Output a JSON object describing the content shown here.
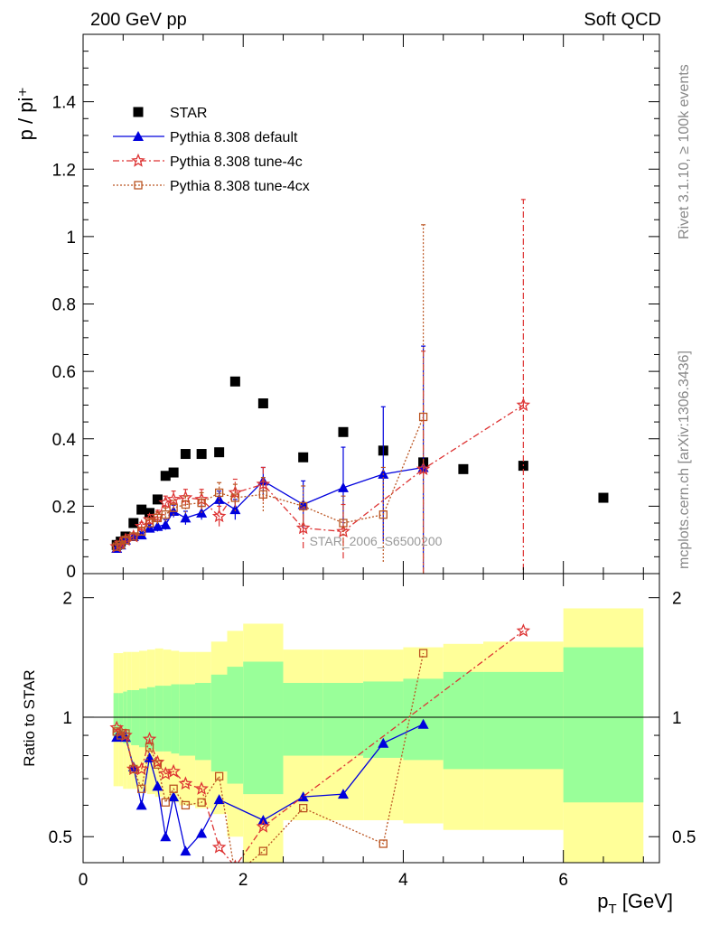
{
  "header": {
    "left": "200 GeV pp",
    "right": "Soft QCD"
  },
  "side_labels": {
    "rivet": "Rivet 3.1.10, ≥ 100k events",
    "source": "mcplots.cern.ch [arXiv:1306.3436]"
  },
  "watermark": "STAR_2006_S6500200",
  "colors": {
    "star": "#000000",
    "default": "#0000dd",
    "tune4c": "#dd3333",
    "tune4cx": "#bb5522",
    "band_outer": "#ffff99",
    "band_inner": "#99ff99"
  },
  "chart_data": [
    {
      "type": "scatter",
      "panel": "main",
      "ylabel": "p / pi⁺",
      "ylim": [
        0,
        1.6
      ],
      "xlim": [
        0,
        7.2
      ],
      "yticks": [
        "0.2",
        "0.4",
        "0.6",
        "0.8",
        "1",
        "1.2",
        "1.4"
      ],
      "zero_label": "0",
      "legend_position": "top-left",
      "series": [
        {
          "name": "STAR",
          "marker": "square",
          "x": [
            0.42,
            0.47,
            0.53,
            0.63,
            0.73,
            0.83,
            0.93,
            1.03,
            1.13,
            1.28,
            1.48,
            1.7,
            1.9,
            2.25,
            2.75,
            3.25,
            3.75,
            4.25,
            4.75,
            5.5,
            6.5
          ],
          "y": [
            0.085,
            0.095,
            0.11,
            0.15,
            0.19,
            0.18,
            0.22,
            0.29,
            0.3,
            0.355,
            0.355,
            0.36,
            0.57,
            0.505,
            0.345,
            0.42,
            0.365,
            0.33,
            0.31,
            0.32,
            0.225
          ]
        },
        {
          "name": "Pythia 8.308 default",
          "marker": "triangle",
          "line": "solid",
          "x": [
            0.42,
            0.47,
            0.53,
            0.63,
            0.73,
            0.83,
            0.93,
            1.03,
            1.13,
            1.28,
            1.48,
            1.7,
            1.9,
            2.25,
            2.75,
            3.25,
            3.75,
            4.25
          ],
          "y": [
            0.075,
            0.085,
            0.1,
            0.11,
            0.115,
            0.135,
            0.14,
            0.145,
            0.185,
            0.165,
            0.18,
            0.22,
            0.19,
            0.275,
            0.205,
            0.255,
            0.295,
            0.315
          ],
          "err": [
            0.005,
            0.005,
            0.006,
            0.008,
            0.01,
            0.012,
            0.015,
            0.015,
            0.018,
            0.02,
            0.02,
            0.025,
            0.03,
            0.04,
            0.07,
            0.12,
            0.2,
            0.36
          ]
        },
        {
          "name": "Pythia 8.308 tune-4c",
          "marker": "star",
          "line": "dashdot",
          "x": [
            0.42,
            0.47,
            0.53,
            0.63,
            0.73,
            0.83,
            0.93,
            1.03,
            1.13,
            1.28,
            1.48,
            1.7,
            1.9,
            2.25,
            2.75,
            3.25,
            3.75,
            4.25,
            5.5
          ],
          "y": [
            0.08,
            0.09,
            0.1,
            0.11,
            0.14,
            0.16,
            0.17,
            0.21,
            0.22,
            0.225,
            0.22,
            0.17,
            0.24,
            0.265,
            0.135,
            0.125,
            null,
            0.31,
            0.5
          ],
          "err": [
            0.005,
            0.006,
            0.007,
            0.01,
            0.012,
            0.015,
            0.018,
            0.02,
            0.025,
            0.025,
            0.03,
            0.03,
            0.04,
            0.05,
            0.06,
            0.08,
            null,
            0.35,
            0.61
          ]
        },
        {
          "name": "Pythia 8.308 tune-4cx",
          "marker": "open-square",
          "line": "dotted",
          "x": [
            0.42,
            0.47,
            0.53,
            0.63,
            0.73,
            0.83,
            0.93,
            1.03,
            1.13,
            1.28,
            1.48,
            1.7,
            1.9,
            2.25,
            2.75,
            3.25,
            3.75,
            4.25
          ],
          "y": [
            0.08,
            0.085,
            0.1,
            0.11,
            0.125,
            0.15,
            0.165,
            0.175,
            0.195,
            0.205,
            0.21,
            0.24,
            0.225,
            0.235,
            0.2,
            0.15,
            0.175,
            0.465
          ],
          "err": [
            0.005,
            0.006,
            0.007,
            0.01,
            0.012,
            0.015,
            0.018,
            0.02,
            0.022,
            0.025,
            0.03,
            0.03,
            0.04,
            0.05,
            0.06,
            0.08,
            0.14,
            0.57
          ]
        }
      ]
    },
    {
      "type": "line",
      "panel": "ratio",
      "ylabel": "Ratio to STAR",
      "xlabel": "p_T [GeV]",
      "xlim": [
        0,
        7.2
      ],
      "xticks": [
        "0",
        "2",
        "4",
        "6"
      ],
      "yticks": [
        "0.5",
        "1",
        "2"
      ],
      "reference": 1,
      "bands": {
        "edges": [
          0.38,
          0.45,
          0.5,
          0.55,
          0.6,
          0.7,
          0.8,
          0.9,
          1.0,
          1.1,
          1.2,
          1.4,
          1.6,
          1.8,
          2.0,
          2.5,
          3.0,
          3.5,
          4.0,
          4.5,
          5.0,
          6.0,
          7.0
        ],
        "outer_lo": [
          0.67,
          0.67,
          0.66,
          0.66,
          0.66,
          0.65,
          0.64,
          0.63,
          0.62,
          0.61,
          0.6,
          0.59,
          0.57,
          0.5,
          0.42,
          0.55,
          0.55,
          0.55,
          0.54,
          0.52,
          0.52,
          0.4
        ],
        "outer_hi": [
          1.45,
          1.45,
          1.46,
          1.46,
          1.46,
          1.47,
          1.48,
          1.49,
          1.48,
          1.47,
          1.46,
          1.46,
          1.55,
          1.65,
          1.72,
          1.48,
          1.48,
          1.48,
          1.5,
          1.53,
          1.55,
          1.88
        ],
        "inner_lo": [
          0.87,
          0.87,
          0.86,
          0.86,
          0.85,
          0.84,
          0.83,
          0.82,
          0.82,
          0.81,
          0.8,
          0.78,
          0.73,
          0.68,
          0.64,
          0.8,
          0.8,
          0.79,
          0.78,
          0.74,
          0.74,
          0.61
        ],
        "inner_hi": [
          1.15,
          1.15,
          1.16,
          1.17,
          1.17,
          1.18,
          1.19,
          1.2,
          1.2,
          1.21,
          1.21,
          1.22,
          1.28,
          1.34,
          1.38,
          1.22,
          1.22,
          1.23,
          1.25,
          1.3,
          1.3,
          1.5
        ]
      },
      "series": [
        {
          "name": "Pythia 8.308 default",
          "x": [
            0.42,
            0.47,
            0.53,
            0.63,
            0.73,
            0.83,
            0.93,
            1.03,
            1.13,
            1.28,
            1.48,
            1.7,
            1.9,
            2.25,
            2.75,
            3.25,
            3.75,
            4.25
          ],
          "y": [
            0.89,
            0.9,
            0.89,
            0.75,
            0.6,
            0.79,
            0.67,
            0.5,
            0.63,
            0.46,
            0.51,
            0.62,
            null,
            0.55,
            0.63,
            0.64,
            0.86,
            0.96
          ]
        },
        {
          "name": "Pythia 8.308 tune-4c",
          "x": [
            0.42,
            0.47,
            0.53,
            0.63,
            0.73,
            0.83,
            0.93,
            1.03,
            1.13,
            1.28,
            1.48,
            1.7,
            1.9,
            2.25,
            5.5
          ],
          "y": [
            0.94,
            0.92,
            0.9,
            0.74,
            0.74,
            0.88,
            0.77,
            0.72,
            0.73,
            0.68,
            0.66,
            0.47,
            0.42,
            0.53,
            1.65
          ]
        },
        {
          "name": "Pythia 8.308 tune-4cx",
          "x": [
            0.42,
            0.47,
            0.53,
            0.63,
            0.73,
            0.83,
            0.93,
            1.03,
            1.13,
            1.28,
            1.48,
            1.7,
            1.9,
            2.25,
            2.75,
            3.75,
            4.25
          ],
          "y": [
            0.92,
            0.9,
            0.91,
            0.74,
            0.66,
            0.84,
            0.76,
            0.61,
            0.66,
            0.6,
            0.61,
            0.71,
            0.4,
            0.46,
            0.59,
            0.48,
            1.45
          ]
        }
      ]
    }
  ]
}
